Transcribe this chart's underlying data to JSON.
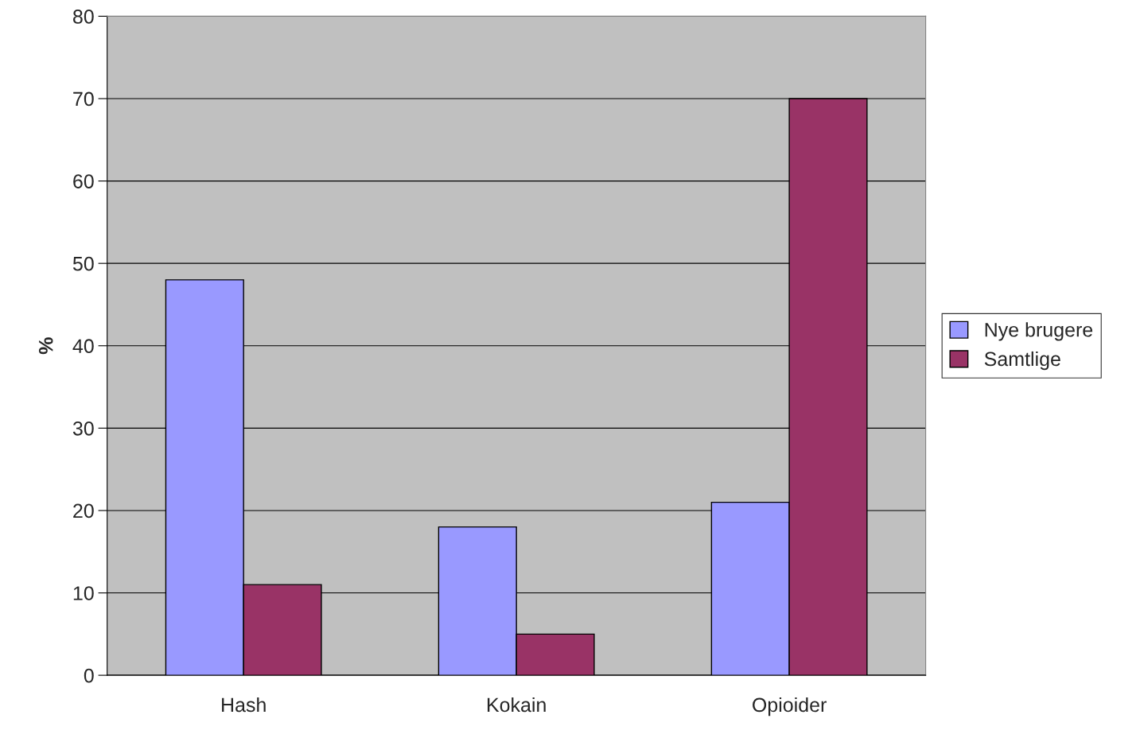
{
  "chart_data": {
    "type": "bar",
    "ylabel": "%",
    "categories": [
      "Hash",
      "Kokain",
      "Opioider"
    ],
    "series": [
      {
        "name": "Nye brugere",
        "color": "#9999ff",
        "values": [
          48,
          18,
          21
        ]
      },
      {
        "name": "Samtlige",
        "color": "#993366",
        "values": [
          11,
          5,
          70
        ]
      }
    ],
    "ylim": [
      0,
      80
    ],
    "yticks": [
      0,
      10,
      20,
      30,
      40,
      50,
      60,
      70,
      80
    ],
    "grid": "y",
    "legend": "right"
  }
}
